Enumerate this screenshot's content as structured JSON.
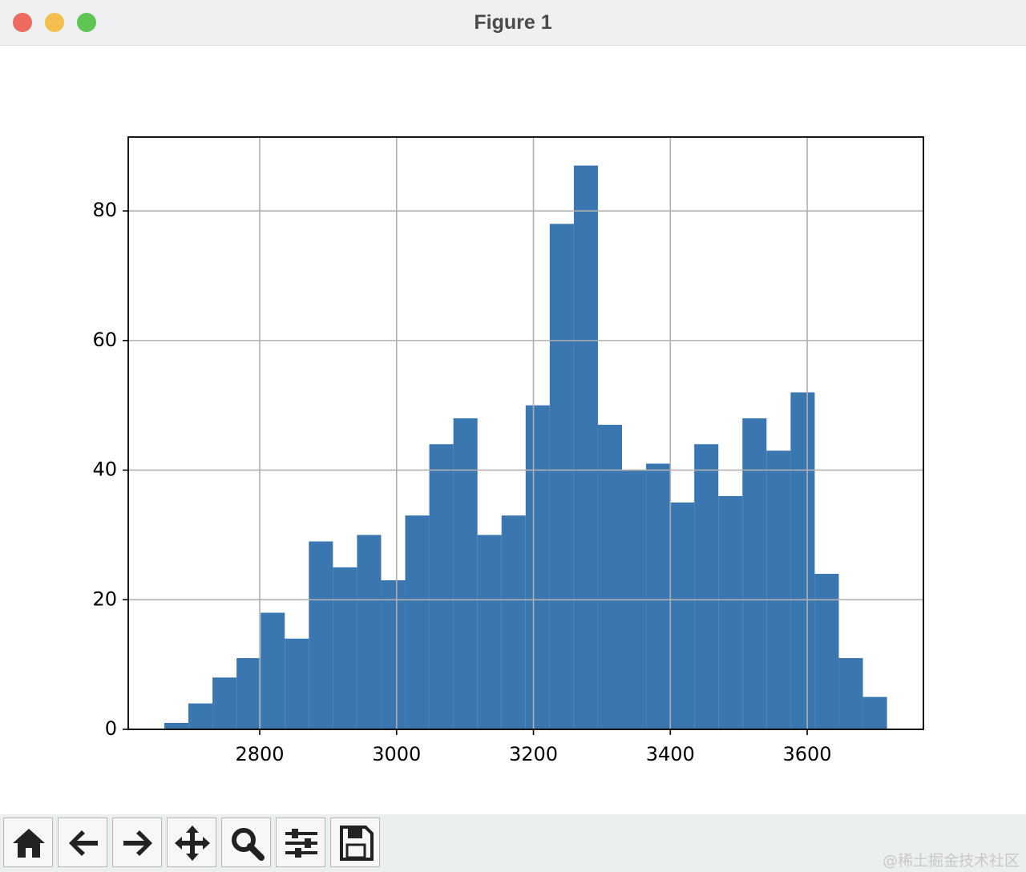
{
  "window": {
    "title": "Figure 1"
  },
  "chart_data": {
    "type": "histogram",
    "bins": [
      2660.6,
      2695.8,
      2731.0,
      2766.2,
      2801.4,
      2836.6,
      2871.8,
      2907.0,
      2942.2,
      2977.4,
      3012.6,
      3047.8,
      3083.0,
      3118.2,
      3153.4,
      3188.6,
      3223.8,
      3259.0,
      3294.2,
      3329.4,
      3364.6,
      3399.8,
      3435.0,
      3470.2,
      3505.4,
      3540.6,
      3575.8,
      3611.0,
      3646.2,
      3681.4,
      3716.6
    ],
    "values": [
      1,
      4,
      8,
      11,
      18,
      14,
      29,
      25,
      30,
      23,
      33,
      44,
      48,
      30,
      33,
      50,
      78,
      87,
      47,
      40,
      41,
      35,
      44,
      36,
      48,
      43,
      52,
      24,
      11,
      5
    ],
    "color": "#3a76af",
    "xlim": [
      2607.9,
      3769.8
    ],
    "ylim": [
      0,
      91.4
    ],
    "xticks": [
      2800,
      3000,
      3200,
      3400,
      3600
    ],
    "yticks": [
      0,
      20,
      40,
      60,
      80
    ],
    "grid": true
  },
  "watermark": "@稀土掘金技术社区"
}
